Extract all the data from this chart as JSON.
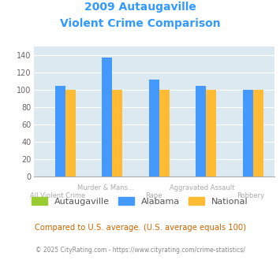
{
  "title_line1": "2009 Autaugaville",
  "title_line2": "Violent Crime Comparison",
  "title_color": "#3399ff",
  "autaugaville_5": [
    0,
    0,
    0,
    0,
    0
  ],
  "alabama_5": [
    105,
    138,
    112,
    105,
    100
  ],
  "national_5": [
    100,
    100,
    100,
    100,
    100
  ],
  "color_autaugaville": "#99cc33",
  "color_alabama": "#4499ff",
  "color_national": "#ffbb33",
  "ylim": [
    0,
    150
  ],
  "yticks": [
    0,
    20,
    40,
    60,
    80,
    100,
    120,
    140
  ],
  "bg_color": "#dce9f0",
  "footer_text": "Compared to U.S. average. (U.S. average equals 100)",
  "footer_color": "#cc6600",
  "copyright_text": "© 2025 CityRating.com - https://www.cityrating.com/crime-statistics/",
  "copyright_color": "#888888",
  "n_groups": 5,
  "group_labels_top": [
    "",
    "Murder & Mans...",
    "",
    "Aggravated Assault",
    ""
  ],
  "group_labels_bot": [
    "All Violent Crime",
    "",
    "Rape",
    "",
    "Robbery"
  ]
}
